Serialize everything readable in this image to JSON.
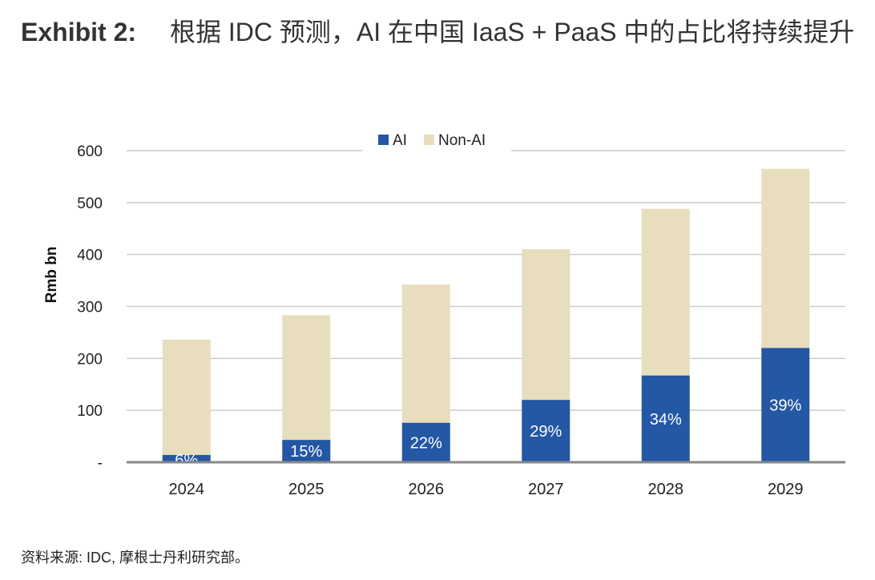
{
  "header": {
    "exhibit_label": "Exhibit 2:",
    "title_text": "根据 IDC 预测，AI 在中国 IaaS + PaaS 中的占比将持续提升"
  },
  "source": "资料来源: IDC, 摩根士丹利研究部。",
  "colors": {
    "ai": "#2457a4",
    "non_ai": "#e8ddbc",
    "grid": "#cccccc",
    "axis": "#888888"
  },
  "chart_data": {
    "type": "bar",
    "stacked": true,
    "title": "",
    "xlabel": "",
    "ylabel": "Rmb bn",
    "ylim": [
      0,
      600
    ],
    "yticks": [
      0,
      100,
      200,
      300,
      400,
      500,
      600
    ],
    "ytick_labels": [
      "-",
      "100",
      "200",
      "300",
      "400",
      "500",
      "600"
    ],
    "categories": [
      "2024",
      "2025",
      "2026",
      "2027",
      "2028",
      "2029"
    ],
    "series": [
      {
        "name": "AI",
        "values": [
          14,
          43,
          76,
          120,
          167,
          220
        ]
      },
      {
        "name": "Non-AI",
        "values": [
          222,
          240,
          266,
          290,
          321,
          345
        ]
      }
    ],
    "data_labels": [
      "6%",
      "15%",
      "22%",
      "29%",
      "34%",
      "39%"
    ],
    "legend": {
      "position": "top-center",
      "entries": [
        "AI",
        "Non-AI"
      ]
    },
    "grid": true
  }
}
